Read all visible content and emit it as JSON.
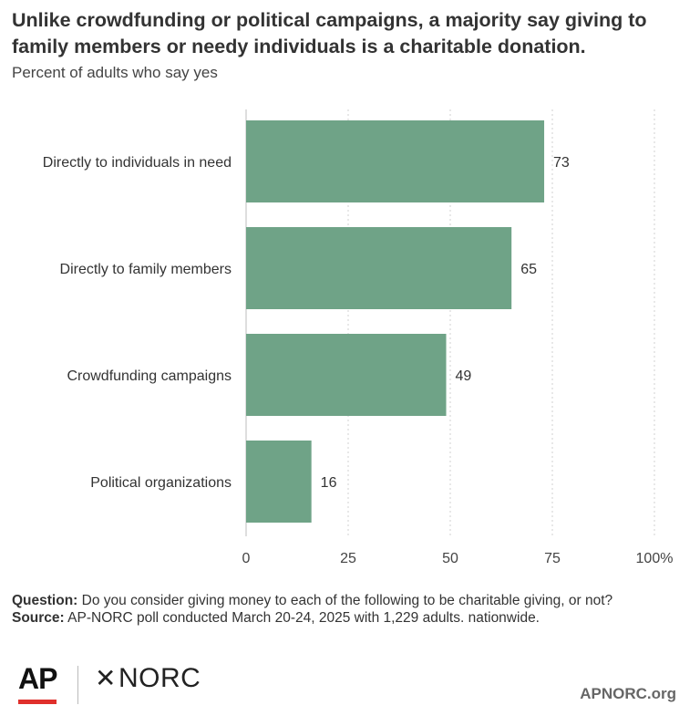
{
  "title": "Unlike crowdfunding or political campaigns, a majority say giving to family members or needy individuals is a charitable donation.",
  "subtitle": "Percent of adults who say yes",
  "chart_data": {
    "type": "bar",
    "orientation": "horizontal",
    "categories": [
      "Directly to individuals in need",
      "Directly to family members",
      "Crowdfunding campaigns",
      "Political organizations"
    ],
    "values": [
      73,
      65,
      49,
      16
    ],
    "xlim": [
      0,
      100
    ],
    "ticks": [
      0,
      25,
      50,
      75,
      100
    ],
    "tick_labels": [
      "0",
      "25",
      "50",
      "75",
      "100%"
    ],
    "grid": true,
    "bar_color": "#6fa387"
  },
  "notes": {
    "question_label": "Question:",
    "question_text": "Do you consider giving money to each of the following to be charitable giving, or not?",
    "source_label": "Source:",
    "source_text": "AP-NORC poll conducted March 20-24, 2025 with 1,229 adults. nationwide."
  },
  "footer": {
    "ap_logo": "AP",
    "norc_logo": "NORC",
    "site": "APNORC.org",
    "ap_red": "#e0302c"
  }
}
